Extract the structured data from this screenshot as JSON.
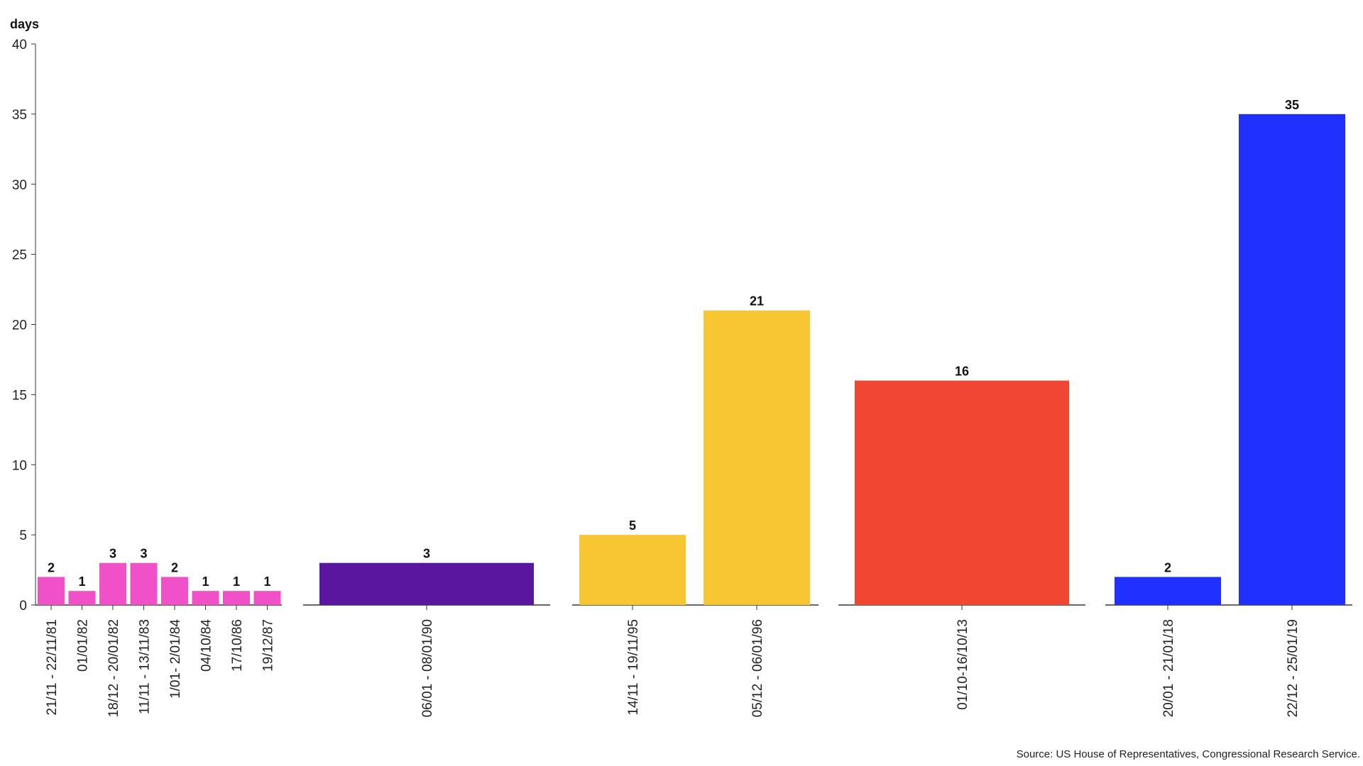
{
  "chart_data": {
    "type": "bar",
    "ylabel": "days",
    "ylim": [
      0,
      40
    ],
    "yticks": [
      0,
      5,
      10,
      15,
      20,
      25,
      30,
      35,
      40
    ],
    "groups": [
      {
        "color": "#F050C8",
        "bars": [
          {
            "label": "21/11 - 22/11/81",
            "value": 2
          },
          {
            "label": "01/01/82",
            "value": 1
          },
          {
            "label": "18/12 - 20/01/82",
            "value": 3
          },
          {
            "label": "11/11 - 13/11/83",
            "value": 3
          },
          {
            "label": "1/01- 2/01/84",
            "value": 2
          },
          {
            "label": "04/10/84",
            "value": 1
          },
          {
            "label": "17/10/86",
            "value": 1
          },
          {
            "label": "19/12/87",
            "value": 1
          }
        ]
      },
      {
        "color": "#5B16A0",
        "bars": [
          {
            "label": "06/01 - 08/01/90",
            "value": 3
          }
        ]
      },
      {
        "color": "#F8C632",
        "bars": [
          {
            "label": "14/11 - 19/11/95",
            "value": 5
          },
          {
            "label": "05/12 - 06/01/96",
            "value": 21
          }
        ]
      },
      {
        "color": "#F04632",
        "bars": [
          {
            "label": "01/10-16/10/13",
            "value": 16
          }
        ]
      },
      {
        "color": "#2030FF",
        "bars": [
          {
            "label": "20/01 - 21/01/18",
            "value": 2
          },
          {
            "label": "22/12 - 25/01/19",
            "value": 35
          }
        ]
      }
    ]
  },
  "source": "Source: US House of Representatives, Congressional Research Service."
}
